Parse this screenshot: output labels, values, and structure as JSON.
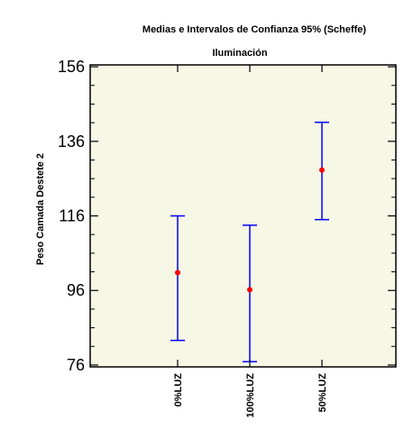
{
  "chart_data": {
    "type": "scatter",
    "title": "Medias e Intervalos de Confianza 95% (Scheffe)",
    "subtitle": "Iluminación",
    "xlabel": "",
    "ylabel": "Peso Camada Destete 2",
    "categories": [
      "0%LUZ",
      "100%LUZ",
      "50%LUZ"
    ],
    "means": [
      100.8,
      96.2,
      128.3
    ],
    "lower": [
      82.6,
      76.9,
      115.0
    ],
    "upper": [
      116.0,
      113.5,
      141.1
    ],
    "yticks": [
      76,
      96,
      116,
      136,
      156
    ],
    "ylim": [
      75.5,
      156.5
    ],
    "grid": false,
    "colors": {
      "background": "#f7f7e6",
      "errorbar": "#0000ff",
      "point": "#ff0000",
      "axis": "#000000"
    }
  }
}
